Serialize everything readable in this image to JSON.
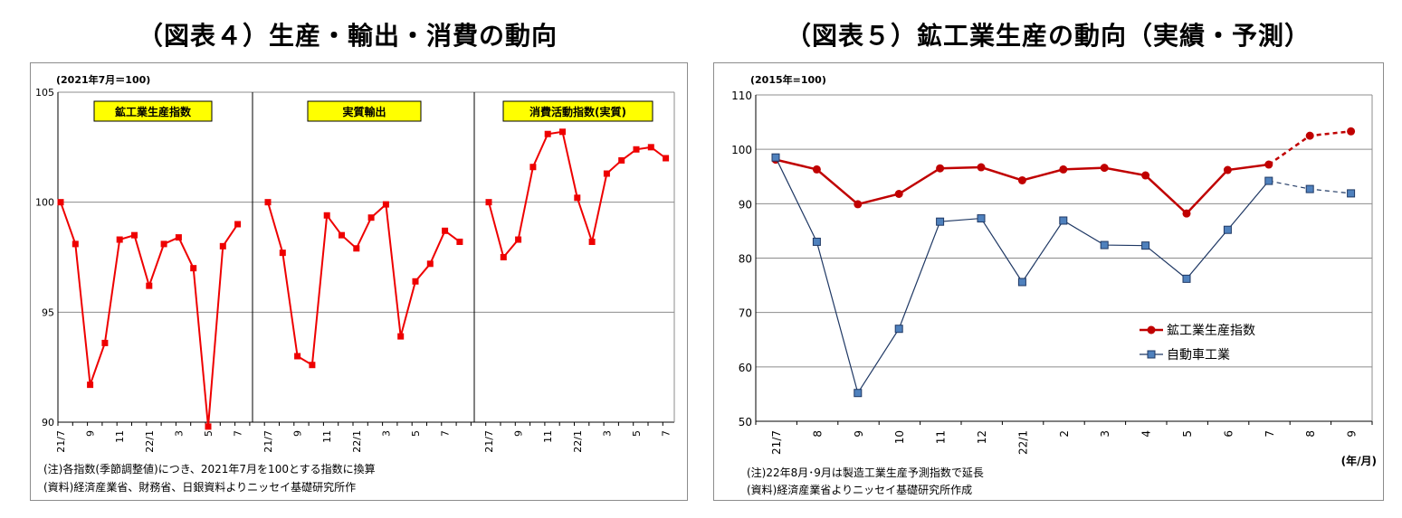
{
  "left": {
    "title": "（図表４）生産・輸出・消費の動向",
    "unit": "(2021年7月＝100)",
    "notes": [
      "(注)各指数(季節調整値)につき、2021年7月を100とする指数に換算",
      "(資料)経済産業省、財務省、日銀資料よりニッセイ基礎研究所作"
    ]
  },
  "right": {
    "title": "（図表５）鉱工業生産の動向（実績・予測）",
    "unit": "(2015年=100)",
    "notes": [
      "(注)22年8月･9月は製造工業生産予測指数で延長",
      "(資料)経済産業省よりニッセイ基礎研究所作成"
    ],
    "axis_unit": "(年/月)"
  },
  "chart_data": [
    {
      "type": "line",
      "title": "（図表４）生産・輸出・消費の動向",
      "ylabel": "(2021年7月＝100)",
      "ylim": [
        90,
        105
      ],
      "yticks": [
        90,
        95,
        100,
        105
      ],
      "grid": true,
      "tick_labels": [
        "21/7",
        "9",
        "11",
        "22/1",
        "3",
        "5",
        "7"
      ],
      "panels": [
        {
          "name": "鉱工業生産指数",
          "x": [
            "21/7",
            "8",
            "9",
            "10",
            "11",
            "12",
            "22/1",
            "2",
            "3",
            "4",
            "5",
            "6",
            "7"
          ],
          "values": [
            100.0,
            98.1,
            91.7,
            93.6,
            98.3,
            98.5,
            96.2,
            98.1,
            98.4,
            97.0,
            89.8,
            98.0,
            99.0
          ]
        },
        {
          "name": "実質輸出",
          "x": [
            "21/7",
            "8",
            "9",
            "10",
            "11",
            "12",
            "22/1",
            "2",
            "3",
            "4",
            "5",
            "6",
            "7",
            "8"
          ],
          "values": [
            100.0,
            97.7,
            93.0,
            92.6,
            99.4,
            98.5,
            97.9,
            99.3,
            99.9,
            93.9,
            96.4,
            97.2,
            98.7,
            98.2
          ]
        },
        {
          "name": "消費活動指数(実質)",
          "x": [
            "21/7",
            "8",
            "9",
            "10",
            "11",
            "12",
            "22/1",
            "2",
            "3",
            "4",
            "5",
            "6",
            "7"
          ],
          "values": [
            100.0,
            97.5,
            98.3,
            101.6,
            103.1,
            103.2,
            100.2,
            98.2,
            101.3,
            101.9,
            102.4,
            102.5,
            102.0
          ]
        }
      ]
    },
    {
      "type": "line",
      "title": "（図表５）鉱工業生産の動向（実績・予測）",
      "ylabel": "(2015年=100)",
      "xlabel": "(年/月)",
      "ylim": [
        50,
        110
      ],
      "yticks": [
        50,
        60,
        70,
        80,
        90,
        100,
        110
      ],
      "grid": true,
      "legend_position": "center-right",
      "categories": [
        "21/7",
        "8",
        "9",
        "10",
        "11",
        "12",
        "22/1",
        "2",
        "3",
        "4",
        "5",
        "6",
        "7",
        "8",
        "9"
      ],
      "forecast_start_index": 12,
      "series": [
        {
          "name": "鉱工業生産指数",
          "color": "#c00000",
          "marker": "circle",
          "values": [
            98.1,
            96.3,
            89.9,
            91.8,
            96.5,
            96.7,
            94.3,
            96.3,
            96.6,
            95.2,
            88.2,
            96.2,
            97.2,
            102.5,
            103.3
          ]
        },
        {
          "name": "自動車工業",
          "color": "#1f3864",
          "marker_fill": "#4f81bd",
          "marker": "square",
          "values": [
            98.5,
            83.0,
            55.2,
            67.0,
            86.7,
            87.3,
            75.6,
            86.9,
            82.4,
            82.3,
            76.2,
            85.2,
            94.2,
            92.7,
            91.9
          ]
        }
      ]
    }
  ],
  "colors": {
    "left_line": "#ee0000",
    "label_box": "#ffff00",
    "grid": "#8c8c8c"
  }
}
